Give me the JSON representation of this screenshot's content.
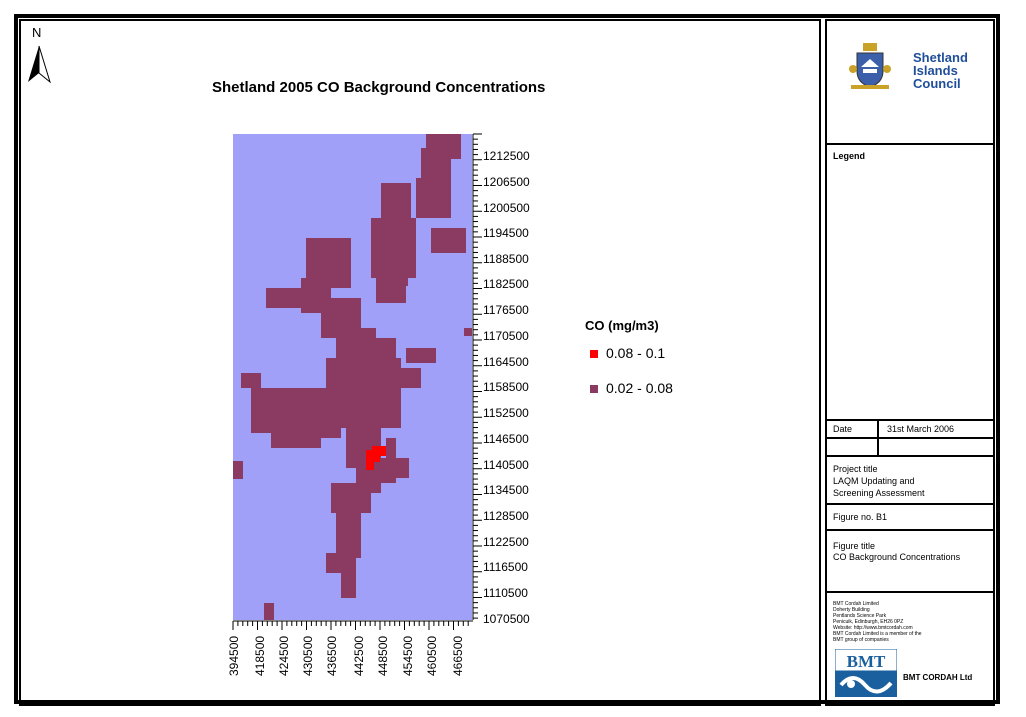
{
  "map": {
    "title": "Shetland 2005 CO Background Concentrations",
    "north_label": "N",
    "y_ticks": [
      "1212500",
      "1206500",
      "1200500",
      "1194500",
      "1188500",
      "1182500",
      "1176500",
      "1170500",
      "1164500",
      "1158500",
      "1152500",
      "1146500",
      "1140500",
      "1134500",
      "1128500",
      "1122500",
      "1116500",
      "1110500",
      "1070500"
    ],
    "x_ticks": [
      "394500",
      "418500",
      "424500",
      "430500",
      "436500",
      "442500",
      "448500",
      "454500",
      "460500",
      "466500"
    ],
    "colors": {
      "sea": "#a0a0f8",
      "land": "#8b3a62",
      "hotspot": "#ff0000"
    }
  },
  "legend": {
    "title": "CO (mg/m3)",
    "items": [
      {
        "label": "0.08 - 0.1",
        "color": "#ff0000"
      },
      {
        "label": "0.02 - 0.08",
        "color": "#8b3a62"
      }
    ]
  },
  "panel": {
    "org": {
      "line1": "Shetland",
      "line2": "Islands",
      "line3": "Council"
    },
    "legend_heading": "Legend",
    "date_label": "Date",
    "date_value": "31st March 2006",
    "project_label": "Project title",
    "project_line1": "LAQM Updating and",
    "project_line2": "Screening Assessment",
    "figure_no": "Figure no. B1",
    "figure_title_label": "Figure title",
    "figure_title_value": "CO Background Concentrations",
    "company_info": [
      "BMT Cordah Limited",
      "Doherty Building",
      "Pentlands Science Park",
      "Penicuik, Edinburgh, EH26 0PZ",
      "Website: http://www.bmtcordah.com",
      "BMT Cordah Limited is a member of the",
      "BMT group of companies"
    ],
    "bmt_logo_text": "BMT",
    "company_name": "BMT CORDAH Ltd"
  }
}
